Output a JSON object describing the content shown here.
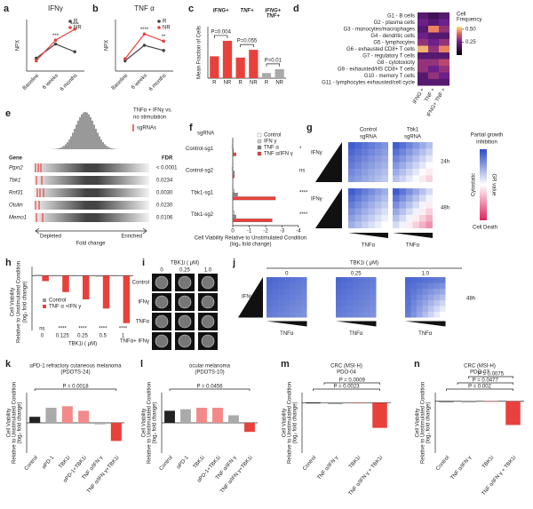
{
  "panels": {
    "a": {
      "label": "a",
      "type": "line",
      "title": "IFNγ",
      "ylabel": "NPX",
      "categories": [
        "Baseline",
        "6 weeks",
        "6 months"
      ],
      "series": [
        {
          "name": "R",
          "color": "#444444",
          "values": [
            3,
            5.2,
            4
          ]
        },
        {
          "name": "NR",
          "color": "#e8413c",
          "values": [
            2.6,
            5.8,
            7.5
          ]
        }
      ],
      "ylim": [
        1,
        9
      ],
      "annotations": [
        "***",
        "****"
      ]
    },
    "b": {
      "label": "b",
      "type": "line",
      "title": "TNF α",
      "ylabel": "NPX",
      "categories": [
        "Baseline",
        "6 weeks",
        "6 months"
      ],
      "series": [
        {
          "name": "R",
          "color": "#444444",
          "values": [
            2,
            3.5,
            3
          ]
        },
        {
          "name": "NR",
          "color": "#e8413c",
          "values": [
            2.2,
            4.6,
            3.9
          ]
        }
      ],
      "ylim": [
        1,
        6
      ],
      "annotations": [
        "****",
        "**"
      ]
    },
    "c": {
      "label": "c",
      "type": "bar",
      "ylabel": "Mean Fraction of Cells",
      "categories": [
        "R",
        "NR",
        "R",
        "NR",
        "R",
        "NR"
      ],
      "values": [
        0.17,
        0.29,
        0.16,
        0.22,
        0.04,
        0.07
      ],
      "colors": [
        "#e8413c",
        "#e8413c",
        "#e8413c",
        "#e8413c",
        "#aaaaaa",
        "#aaaaaa"
      ],
      "ylim": [
        0,
        0.4
      ],
      "groups": [
        [
          "IFNG+"
        ],
        [
          "TNF+"
        ],
        [
          "IFNG+",
          "TNF+"
        ]
      ],
      "pvalues": [
        "P=0.004",
        "P=0.055",
        "P=0.01"
      ]
    },
    "d": {
      "label": "d",
      "type": "heatmap",
      "rows": [
        "G1 - B cells",
        "G2 - plasma cells",
        "G3 - monocytes/macrophages",
        "G4 - dendritic cells",
        "G5 - lymphocytes",
        "G6 - exhausted CD8+ T cells",
        "G7 - regulatory T cells",
        "G8 - cytotoxicity",
        "G9 - exhausted/HS CD8+ T cells",
        "G10 - memory T cells",
        "G11 - lymphocytes exhausted/cell cycle"
      ],
      "columns": [
        "IFNG +",
        "TNF +",
        "IFNG+ TNF +"
      ],
      "values": [
        [
          0.2,
          0.15,
          0.2
        ],
        [
          0.25,
          0.2,
          0.25
        ],
        [
          0.2,
          0.45,
          0.3
        ],
        [
          0.25,
          0.2,
          0.2
        ],
        [
          0.3,
          0.25,
          0.3
        ],
        [
          0.5,
          0.3,
          0.45
        ],
        [
          0.2,
          0.2,
          0.2
        ],
        [
          0.3,
          0.3,
          0.35
        ],
        [
          0.3,
          0.25,
          0.3
        ],
        [
          0.2,
          0.3,
          0.25
        ],
        [
          0.2,
          0.2,
          0.2
        ]
      ],
      "legend_title": [
        "Cell",
        "Frequency"
      ],
      "clim": [
        0,
        0.55
      ],
      "cticks": [
        {
          "value": 0.5,
          "label": "0.50"
        },
        0.25
      ]
    },
    "e": {
      "label": "e",
      "title": [
        "TNFα + IFNγ vs.",
        "no stimulation"
      ],
      "legend": "sgRNAs",
      "gene_header": "Gene",
      "fdr_header": "FDR",
      "genes": [
        "Ptpn2",
        "Tbk1",
        "Rnf31",
        "Otulin",
        "Memo1"
      ],
      "fdr": [
        "< 0.0001",
        "0.0234",
        "0.0030",
        "0.0230",
        "0.0106"
      ],
      "depleted": "Depleted",
      "enriched": "Enriched",
      "xlabel": "Fold change"
    },
    "f": {
      "label": "f",
      "type": "hbar",
      "row_header": "sgRNA",
      "categories": [
        "Control-sg1",
        "Control-sg2",
        "Tbk1-sg1",
        "Tbk1-sg2"
      ],
      "series": [
        {
          "name": "Control",
          "color": "#ffffff",
          "values": [
            0,
            0,
            0,
            0
          ]
        },
        {
          "name": "IFN γ",
          "color": "#cccccc",
          "values": [
            0.05,
            0.05,
            -0.1,
            -0.1
          ]
        },
        {
          "name": "TNF α",
          "color": "#888888",
          "values": [
            -0.05,
            -0.1,
            -0.3,
            -0.2
          ]
        },
        {
          "name": "TNF α/IFN γ",
          "color": "#e8413c",
          "values": [
            -0.2,
            -0.1,
            -2.6,
            -2.4
          ]
        }
      ],
      "xlim": [
        0,
        -4
      ],
      "xticks": [
        0,
        -1,
        -2,
        -3,
        -4
      ],
      "annotations": [
        "*",
        "ns",
        "****",
        "****"
      ],
      "xlabel": [
        "Cell Viability Relative to Unstimulated Condition",
        "(log₂ fold change)"
      ]
    },
    "g": {
      "label": "g",
      "col_headers": [
        [
          "Control",
          "sgRNA"
        ],
        [
          "Tbk1",
          "sgRNA"
        ]
      ],
      "times": [
        "24h",
        "48h"
      ],
      "ylabel": "IFNγ",
      "xlabel": "TNFα",
      "top": [
        "Partial growth",
        "inhibition"
      ],
      "middle": "Cytostatic",
      "bottom": "Cell Death",
      "cbar_label": "GR value"
    },
    "h": {
      "label": "h",
      "type": "bar",
      "ylabel": [
        "Cell Viability",
        "Relative to Unstimulated Condition",
        "(log₂ fold change)"
      ],
      "xlabel": "TBK1i ( μM)",
      "categories": [
        "0",
        "0.125",
        "0.25",
        "0.5",
        "1"
      ],
      "series": [
        {
          "name": "Control",
          "color": "#999999",
          "values": [
            0.05,
            0,
            0,
            -0.05,
            0
          ]
        },
        {
          "name": "TNF α +IFN γ",
          "color": "#e8413c",
          "values": [
            -0.3,
            -0.9,
            -1.3,
            -1.8,
            -2.6
          ]
        }
      ],
      "ylim": [
        -3,
        0.5
      ],
      "annotations": [
        "ns",
        "****",
        "****",
        "****",
        "****"
      ]
    },
    "i": {
      "label": "i",
      "header": "TBK1i ( μM)",
      "columns": [
        "0",
        "0.25",
        "1.0"
      ],
      "rows": [
        "Control",
        "IFNγ",
        "TNFα",
        "TNFα+ IFNγ"
      ]
    },
    "j": {
      "label": "j",
      "header": "TBK1i ( μM)",
      "columns": [
        "0",
        "0.25",
        "1.0"
      ],
      "ylabel": "IFNγ",
      "xlabel": "TNFα",
      "time": "48h"
    },
    "k": {
      "label": "k",
      "type": "bar",
      "title": [
        "αPD-1 refractory cutaneous melanoma",
        "(PDOTS-24)"
      ],
      "ylabel": [
        "Cell Viability",
        "Relative to Unstimulated Condition",
        "(log₂ fold change)"
      ],
      "categories": [
        "Control",
        "αPD-1",
        "TBK1i",
        "αPD-1+TBK1i",
        "TNF α/IFN γ",
        "TNF α/IFN γ+TBK1i"
      ],
      "values": [
        0.4,
        1.0,
        1.1,
        0.8,
        -0.1,
        -1.2
      ],
      "colors": [
        "#222222",
        "#aaaaaa",
        "#f28a8a",
        "#f28a8a",
        "#aaaaaa",
        "#e8413c"
      ],
      "ylim": [
        -2,
        2
      ],
      "pvalues": [
        "P = 0.0018"
      ]
    },
    "l": {
      "label": "l",
      "type": "bar",
      "title": [
        "ocular melanoma",
        "(PDOTS-10)"
      ],
      "ylabel": [
        "Cell Viability",
        "Relative to Unstimulated Condition",
        "(log₂ fold change)"
      ],
      "categories": [
        "Control",
        "αPD-1",
        "TBK1i",
        "αPD-1+TBK1i",
        "TNF α/IFN γ",
        "TNF α/IFN γ+TBK1i"
      ],
      "values": [
        0.8,
        0.9,
        1.0,
        1.0,
        0.5,
        -0.6
      ],
      "colors": [
        "#222222",
        "#aaaaaa",
        "#f28a8a",
        "#f28a8a",
        "#aaaaaa",
        "#e8413c"
      ],
      "ylim": [
        -2,
        2
      ],
      "pvalues": [
        "P = 0.0456"
      ]
    },
    "m": {
      "label": "m",
      "type": "bar",
      "title": [
        "CRC (MSI-H)",
        "PDO-04"
      ],
      "ylabel": [
        "Cell Viability",
        "Relative to Unstimulated Condition",
        "(log₂ fold change)"
      ],
      "categories": [
        "Control",
        "TNF α/IFN γ",
        "TBK1i",
        "TNF α/IFN γ + TBK1i"
      ],
      "values": [
        0,
        -0.3,
        -0.1,
        -5
      ],
      "colors": [
        "#222222",
        "#aaaaaa",
        "#f28a8a",
        "#e8413c"
      ],
      "ylim": [
        -10,
        2
      ],
      "pvalues": [
        "P = 0.0023",
        "P = 0.0009"
      ]
    },
    "n": {
      "label": "n",
      "type": "bar",
      "title": [
        "CRC (MSI-H)",
        "PDO-07"
      ],
      "ylabel": [
        "Cell Viability",
        "Relative to Unstimulated Condition",
        "(log₂ fold change)"
      ],
      "categories": [
        "Control",
        "TNF α/IFN γ",
        "TBK1i",
        "TNF α/IFN γ + TBK1i"
      ],
      "values": [
        0,
        -0.3,
        0,
        -5.5
      ],
      "colors": [
        "#222222",
        "#aaaaaa",
        "#f28a8a",
        "#e8413c"
      ],
      "ylim": [
        -12,
        2
      ],
      "pvalues": [
        "P = 0.002",
        "P = 0.0477",
        "P = 0.0075"
      ]
    }
  }
}
